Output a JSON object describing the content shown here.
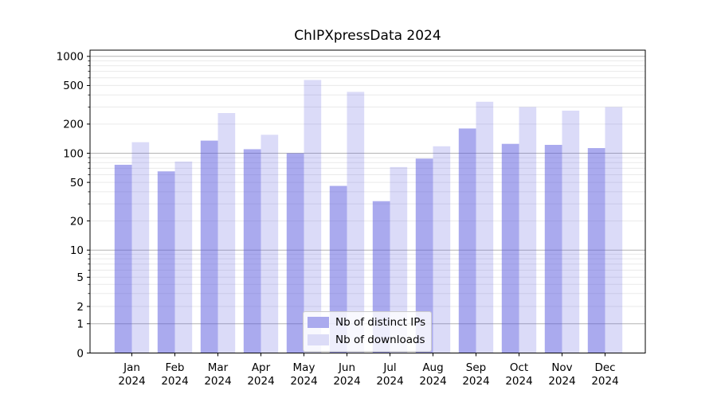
{
  "chart_data": {
    "type": "bar",
    "title": "ChIPXpressData 2024",
    "categories": [
      "Jan",
      "Feb",
      "Mar",
      "Apr",
      "May",
      "Jun",
      "Jul",
      "Aug",
      "Sep",
      "Oct",
      "Nov",
      "Dec"
    ],
    "year_label": "2024",
    "series": [
      {
        "name": "Nb of distinct IPs",
        "legend_color": "#aaaaee",
        "fill": "rgba(85,85,221,0.5)",
        "values": [
          76,
          65,
          135,
          110,
          100,
          46,
          32,
          88,
          180,
          125,
          122,
          113
        ]
      },
      {
        "name": "Nb of downloads",
        "legend_color": "#dcdcf7",
        "fill": "rgba(85,85,221,0.21)",
        "values": [
          130,
          82,
          260,
          155,
          570,
          430,
          72,
          118,
          340,
          300,
          275,
          300
        ]
      }
    ],
    "yticks": [
      0,
      1,
      2,
      5,
      10,
      20,
      50,
      100,
      200,
      500,
      1000
    ],
    "ylim": [
      0,
      1160
    ],
    "yscale": "symlog",
    "grid": {
      "major_lines": [
        1,
        10,
        100,
        1000
      ],
      "minor": true,
      "major_color": "#b4b4b4",
      "minor_color": "#eaeaea"
    },
    "legend_position": "lower center",
    "spine_color": "#000000",
    "background": "#ffffff"
  }
}
